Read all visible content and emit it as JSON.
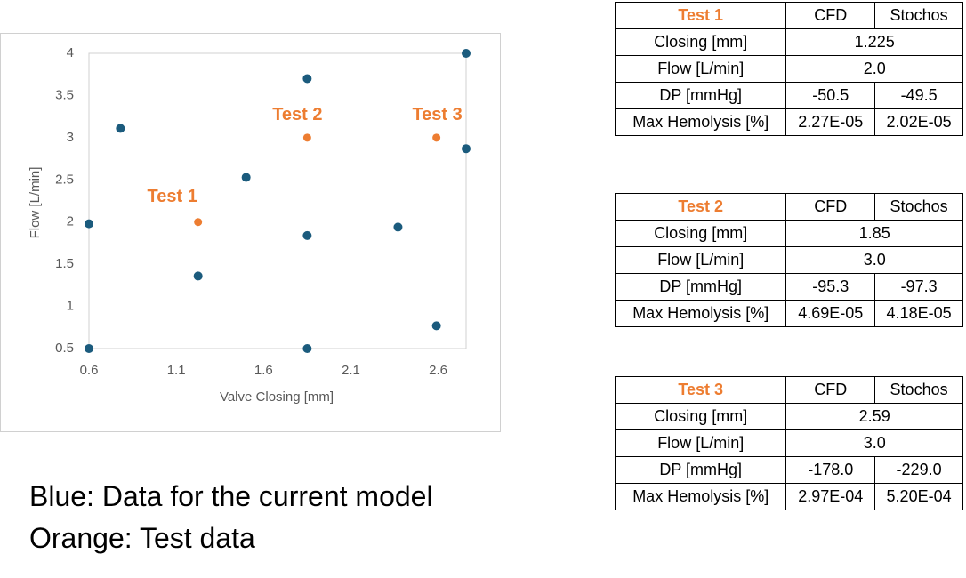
{
  "chart_data": {
    "type": "scatter",
    "xlabel": "Valve Closing [mm]",
    "ylabel": "Flow [L/min]",
    "xlim": [
      0.6,
      2.76
    ],
    "ylim": [
      0.5,
      4
    ],
    "xticks": [
      0.6,
      1.1,
      1.6,
      2.1,
      2.6
    ],
    "yticks": [
      0.5,
      1,
      1.5,
      2,
      2.5,
      3,
      3.5,
      4
    ],
    "grid": false,
    "series": [
      {
        "color": "#1b5b7d",
        "x": [
          0.6,
          0.6,
          0.78,
          1.225,
          1.5,
          1.85,
          1.85,
          1.85,
          2.37,
          2.59,
          2.76,
          2.76
        ],
        "values": [
          1.98,
          0.5,
          3.11,
          1.36,
          2.53,
          3.7,
          1.84,
          0.5,
          1.94,
          0.77,
          4.0,
          2.87
        ]
      },
      {
        "color": "#ed7d31",
        "x": [
          1.225,
          1.85,
          2.59
        ],
        "values": [
          2.0,
          3.0,
          3.0
        ],
        "annotations": [
          "Test 1",
          "Test 2",
          "Test 3"
        ]
      }
    ]
  },
  "tables": [
    {
      "rows": [
        [
          "Test 1",
          "CFD",
          "Stochos"
        ],
        [
          "Closing [mm]",
          "1.225"
        ],
        [
          "Flow [L/min]",
          "2.0"
        ],
        [
          "DP [mmHg]",
          "-50.5",
          "-49.5"
        ],
        [
          "Max Hemolysis [%]",
          "2.27E-05",
          "2.02E-05"
        ]
      ]
    },
    {
      "rows": [
        [
          "Test 2",
          "CFD",
          "Stochos"
        ],
        [
          "Closing [mm]",
          "1.85"
        ],
        [
          "Flow [L/min]",
          "3.0"
        ],
        [
          "DP [mmHg]",
          "-95.3",
          "-97.3"
        ],
        [
          "Max Hemolysis [%]",
          "4.69E-05",
          "4.18E-05"
        ]
      ]
    },
    {
      "rows": [
        [
          "Test 3",
          "CFD",
          "Stochos"
        ],
        [
          "Closing [mm]",
          "2.59"
        ],
        [
          "Flow [L/min]",
          "3.0"
        ],
        [
          "DP [mmHg]",
          "-178.0",
          "-229.0"
        ],
        [
          "Max Hemolysis [%]",
          "2.97E-04",
          "5.20E-04"
        ]
      ]
    }
  ],
  "caption": [
    "Blue: Data for the current model",
    "Orange: Test data"
  ]
}
